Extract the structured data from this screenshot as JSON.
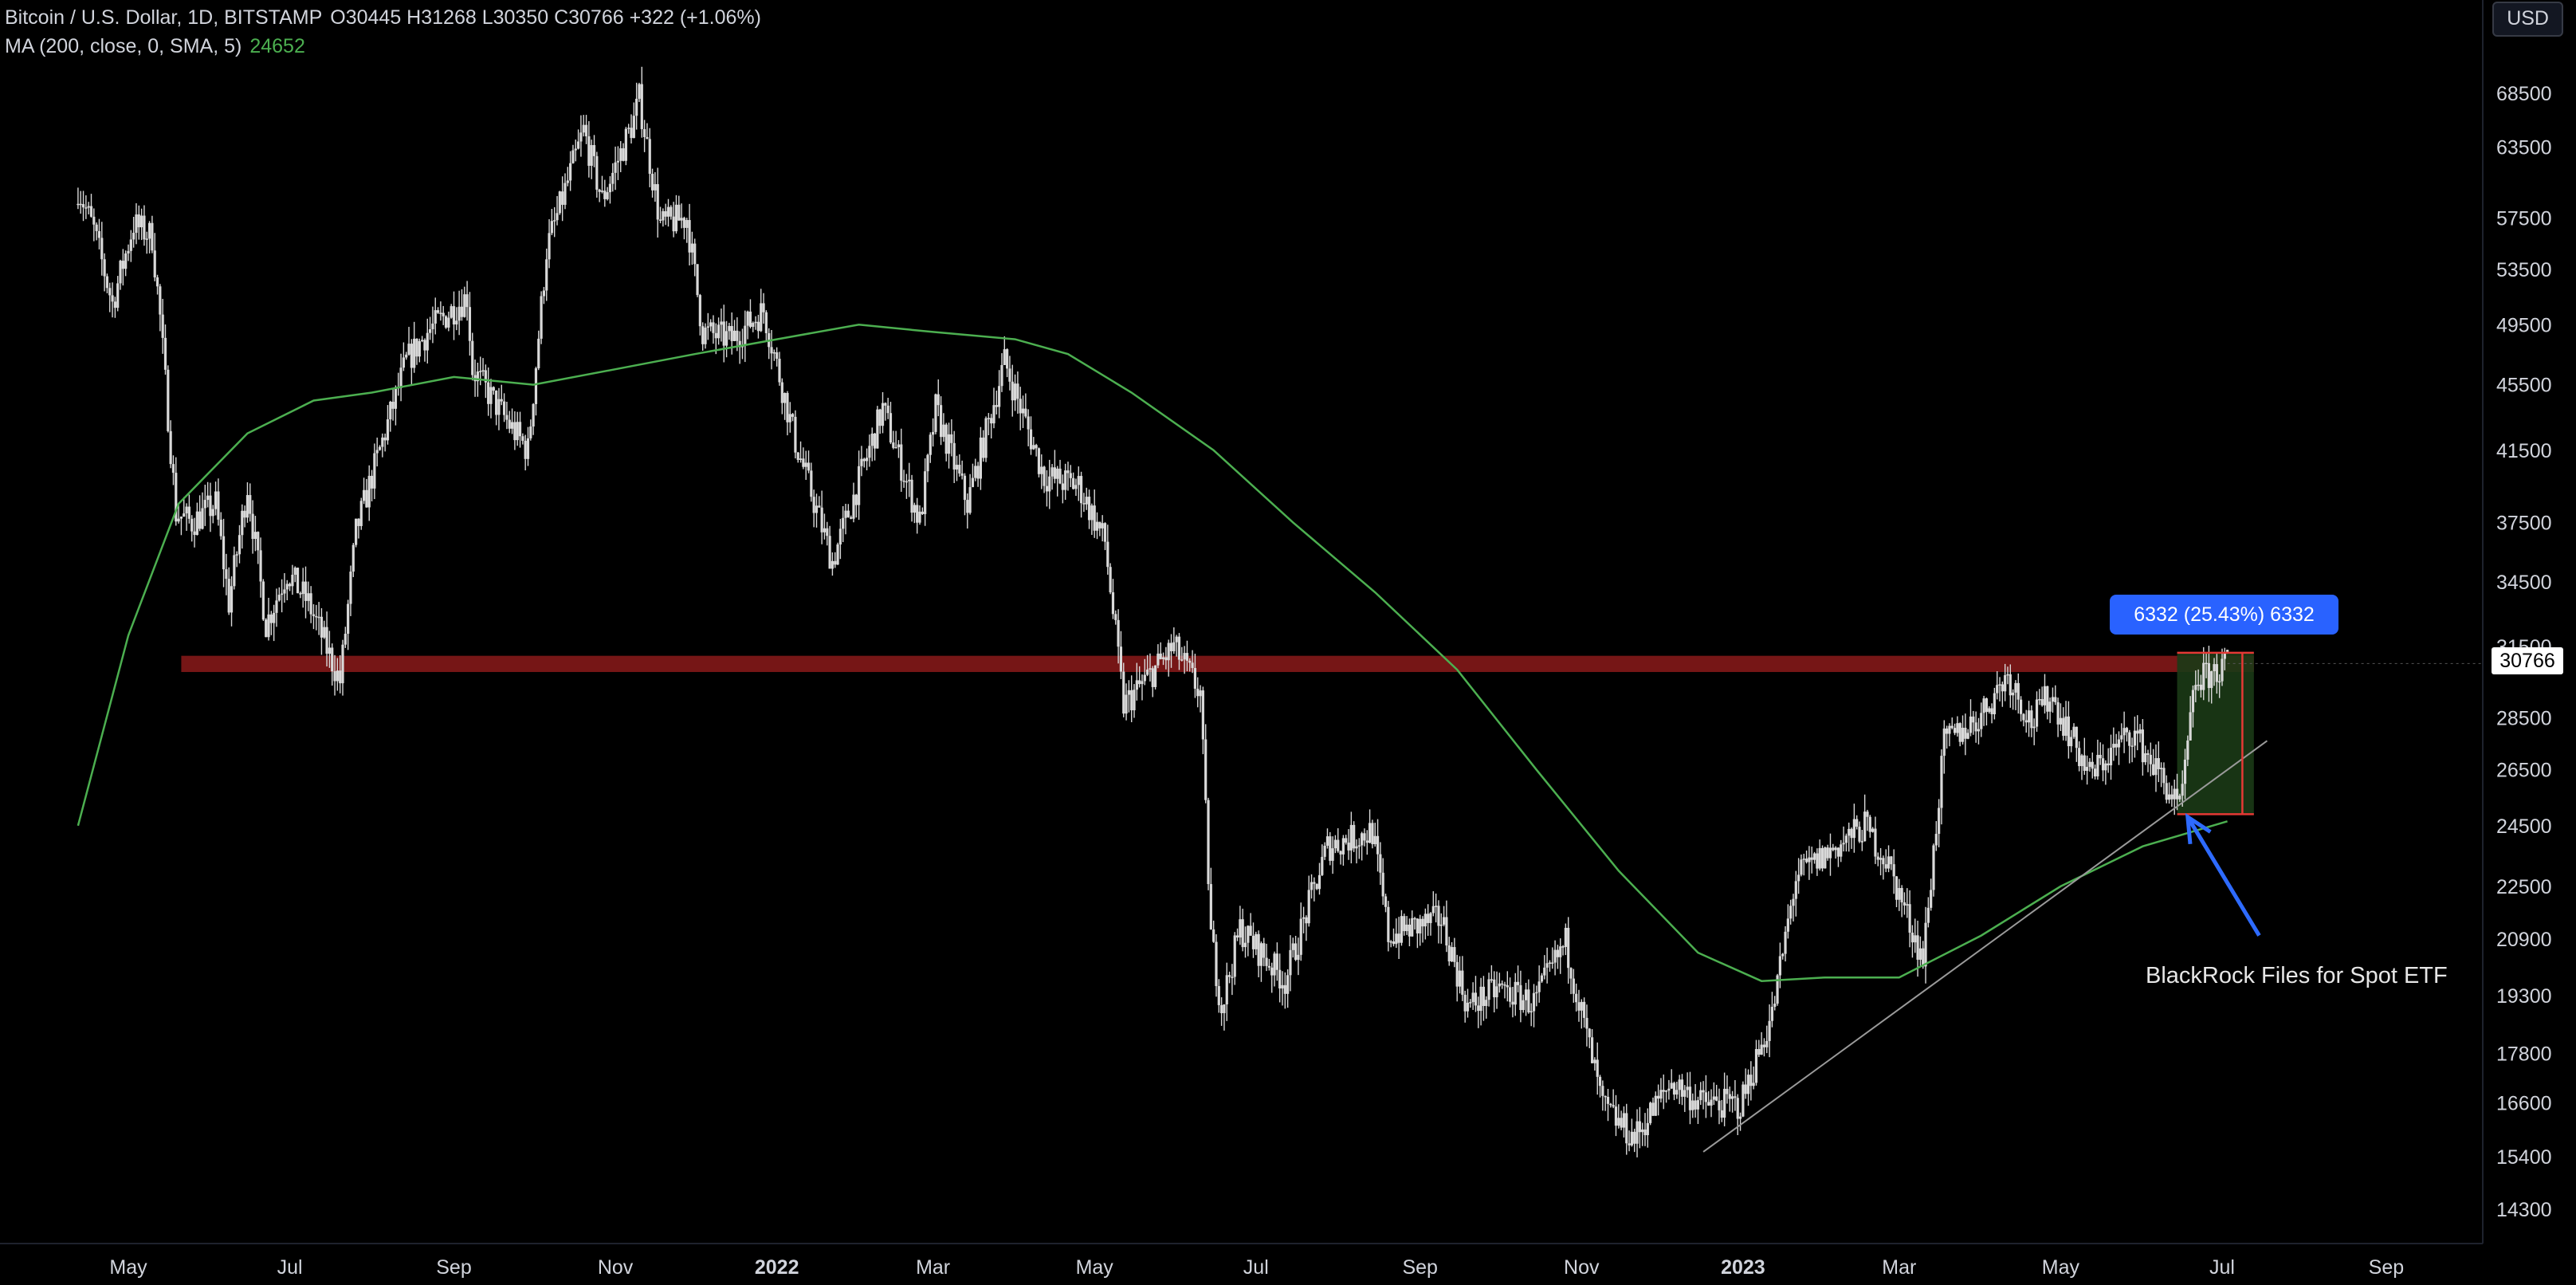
{
  "legend": {
    "symbol": "Bitcoin / U.S. Dollar, 1D, BITSTAMP",
    "ohlc": "O30445  H31268  L30350  C30766  +322 (+1.06%)",
    "ma_label": "MA (200, close, 0, SMA, 5)",
    "ma_value": "24652"
  },
  "currency_button": "USD",
  "current_price_label": "30766",
  "measure_label": "6332 (25.43%) 6332",
  "annotation": "BlackRock Files for Spot ETF",
  "colors": {
    "background": "#000000",
    "candles": "#d9d9d9",
    "ma": "#4caf50",
    "resistance": "#8b1a1a",
    "measure_box": "#1b3a16",
    "measure_label_bg": "#2962ff",
    "arrow": "#2e6bff",
    "trendline": "#9a9a9a"
  },
  "chart_data": {
    "type": "candlestick",
    "title": "Bitcoin / U.S. Dollar, 1D, BITSTAMP",
    "y_scale": "log",
    "ylim": [
      13800,
      72000
    ],
    "y_ticks": [
      68500,
      63500,
      57500,
      53500,
      49500,
      45500,
      41500,
      37500,
      34500,
      31500,
      28500,
      26500,
      24500,
      22500,
      20900,
      19300,
      17800,
      16600,
      15400,
      14300
    ],
    "x_ticks": [
      {
        "label": "May",
        "date": "2021-05-01"
      },
      {
        "label": "Jul",
        "date": "2021-07-01"
      },
      {
        "label": "Sep",
        "date": "2021-09-01"
      },
      {
        "label": "Nov",
        "date": "2021-11-01"
      },
      {
        "label": "2022",
        "date": "2022-01-01",
        "bold": true
      },
      {
        "label": "Mar",
        "date": "2022-03-01"
      },
      {
        "label": "May",
        "date": "2022-05-01"
      },
      {
        "label": "Jul",
        "date": "2022-07-01"
      },
      {
        "label": "Sep",
        "date": "2022-09-01"
      },
      {
        "label": "Nov",
        "date": "2022-11-01"
      },
      {
        "label": "2023",
        "date": "2023-01-01",
        "bold": true
      },
      {
        "label": "Mar",
        "date": "2023-03-01"
      },
      {
        "label": "May",
        "date": "2023-05-01"
      },
      {
        "label": "Jul",
        "date": "2023-07-01"
      },
      {
        "label": "Sep",
        "date": "2023-09-01"
      }
    ],
    "price_path": [
      [
        "2021-04-12",
        60000
      ],
      [
        "2021-04-18",
        56500
      ],
      [
        "2021-04-25",
        51000
      ],
      [
        "2021-05-03",
        57000
      ],
      [
        "2021-05-10",
        56000
      ],
      [
        "2021-05-13",
        50000
      ],
      [
        "2021-05-19",
        38000
      ],
      [
        "2021-05-25",
        37500
      ],
      [
        "2021-06-03",
        38500
      ],
      [
        "2021-06-08",
        33500
      ],
      [
        "2021-06-15",
        39500
      ],
      [
        "2021-06-22",
        32500
      ],
      [
        "2021-06-30",
        35000
      ],
      [
        "2021-07-08",
        33500
      ],
      [
        "2021-07-20",
        30000
      ],
      [
        "2021-07-26",
        37000
      ],
      [
        "2021-08-01",
        40000
      ],
      [
        "2021-08-14",
        47000
      ],
      [
        "2021-08-22",
        49000
      ],
      [
        "2021-09-06",
        51500
      ],
      [
        "2021-09-08",
        46500
      ],
      [
        "2021-09-22",
        43000
      ],
      [
        "2021-09-29",
        41500
      ],
      [
        "2021-10-06",
        55000
      ],
      [
        "2021-10-20",
        65000
      ],
      [
        "2021-10-27",
        59000
      ],
      [
        "2021-11-08",
        66000
      ],
      [
        "2021-11-10",
        68000
      ],
      [
        "2021-11-18",
        57000
      ],
      [
        "2021-11-28",
        57500
      ],
      [
        "2021-12-04",
        49000
      ],
      [
        "2021-12-15",
        48500
      ],
      [
        "2021-12-27",
        50500
      ],
      [
        "2022-01-08",
        42000
      ],
      [
        "2022-01-22",
        35500
      ],
      [
        "2022-02-10",
        44000
      ],
      [
        "2022-02-24",
        37500
      ],
      [
        "2022-03-02",
        44000
      ],
      [
        "2022-03-14",
        38500
      ],
      [
        "2022-03-28",
        47000
      ],
      [
        "2022-04-12",
        40000
      ],
      [
        "2022-04-25",
        39500
      ],
      [
        "2022-05-05",
        36500
      ],
      [
        "2022-05-12",
        29000
      ],
      [
        "2022-05-31",
        31500
      ],
      [
        "2022-06-10",
        29500
      ],
      [
        "2022-06-14",
        21000
      ],
      [
        "2022-06-18",
        19000
      ],
      [
        "2022-06-25",
        21200
      ],
      [
        "2022-07-12",
        19700
      ],
      [
        "2022-07-28",
        23800
      ],
      [
        "2022-08-14",
        24300
      ],
      [
        "2022-08-20",
        21000
      ],
      [
        "2022-09-09",
        21500
      ],
      [
        "2022-09-19",
        19000
      ],
      [
        "2022-10-01",
        19500
      ],
      [
        "2022-10-14",
        19100
      ],
      [
        "2022-10-26",
        20800
      ],
      [
        "2022-11-09",
        16500
      ],
      [
        "2022-11-21",
        15800
      ],
      [
        "2022-12-05",
        17100
      ],
      [
        "2022-12-16",
        16600
      ],
      [
        "2022-12-31",
        16550
      ],
      [
        "2023-01-12",
        18800
      ],
      [
        "2023-01-21",
        22800
      ],
      [
        "2023-02-16",
        24500
      ],
      [
        "2023-02-25",
        23200
      ],
      [
        "2023-03-10",
        20300
      ],
      [
        "2023-03-18",
        27500
      ],
      [
        "2023-03-31",
        28500
      ],
      [
        "2023-04-11",
        30300
      ],
      [
        "2023-04-20",
        28300
      ],
      [
        "2023-04-27",
        29500
      ],
      [
        "2023-05-12",
        26300
      ],
      [
        "2023-05-28",
        28000
      ],
      [
        "2023-06-10",
        25900
      ],
      [
        "2023-06-15",
        25000
      ],
      [
        "2023-06-21",
        30000
      ],
      [
        "2023-06-30",
        30500
      ],
      [
        "2023-07-03",
        30766
      ]
    ],
    "ma_series": {
      "name": "MA (200, close, 0, SMA, 5)",
      "points": [
        [
          "2021-04-12",
          24500
        ],
        [
          "2021-05-01",
          32000
        ],
        [
          "2021-05-20",
          38500
        ],
        [
          "2021-06-15",
          42500
        ],
        [
          "2021-07-10",
          44500
        ],
        [
          "2021-08-01",
          45000
        ],
        [
          "2021-09-01",
          46000
        ],
        [
          "2021-10-01",
          45500
        ],
        [
          "2021-11-01",
          46500
        ],
        [
          "2021-12-01",
          47500
        ],
        [
          "2022-01-01",
          48500
        ],
        [
          "2022-02-01",
          49500
        ],
        [
          "2022-03-01",
          49000
        ],
        [
          "2022-04-01",
          48500
        ],
        [
          "2022-04-21",
          47500
        ],
        [
          "2022-05-15",
          45000
        ],
        [
          "2022-06-15",
          41500
        ],
        [
          "2022-07-15",
          37500
        ],
        [
          "2022-08-15",
          34000
        ],
        [
          "2022-09-15",
          30500
        ],
        [
          "2022-10-15",
          26500
        ],
        [
          "2022-11-15",
          23000
        ],
        [
          "2022-12-15",
          20500
        ],
        [
          "2023-01-08",
          19700
        ],
        [
          "2023-02-01",
          19800
        ],
        [
          "2023-03-01",
          19800
        ],
        [
          "2023-04-01",
          21000
        ],
        [
          "2023-05-01",
          22500
        ],
        [
          "2023-06-01",
          23800
        ],
        [
          "2023-07-03",
          24652
        ]
      ]
    },
    "resistance_zone": {
      "x_start": "2021-05-21",
      "x_end": "2023-07-13",
      "y_low": 30400,
      "y_high": 31100
    },
    "trendline": {
      "start": [
        "2022-12-17",
        15500
      ],
      "end": [
        "2023-07-18",
        27600
      ]
    },
    "measure": {
      "x_start": "2023-06-14",
      "x_end": "2023-07-13",
      "y_low": 24900,
      "y_high": 31232,
      "change": 6332,
      "percent": 25.43
    },
    "arrow": {
      "from": [
        "2023-07-15",
        21000
      ],
      "to": [
        "2023-06-18",
        24800
      ]
    }
  }
}
